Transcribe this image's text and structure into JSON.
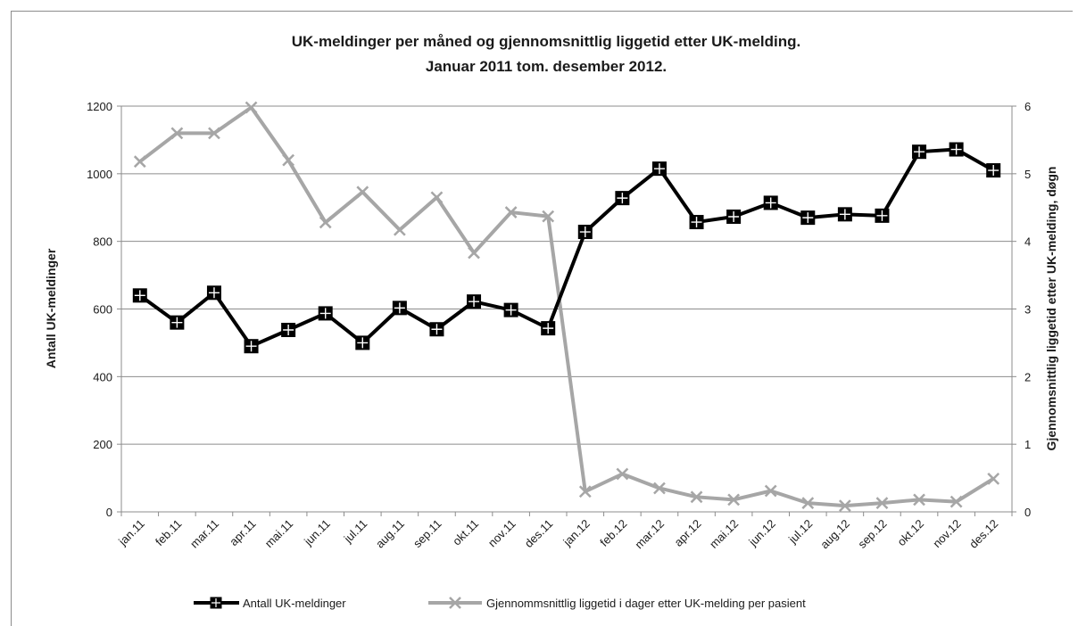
{
  "chart_data": {
    "type": "line",
    "title_line1": "UK-meldinger per måned og gjennomsnittlig liggetid etter UK-melding.",
    "title_line2": "Januar 2011 tom. desember 2012.",
    "ylabel_left": "Antall UK-meldinger",
    "ylabel_right": "Gjennomsnittlig liggetid etter UK-melding, døgn",
    "ylim_left": [
      0,
      1200
    ],
    "ylim_right": [
      0,
      6
    ],
    "yticks_left": [
      "0",
      "200",
      "400",
      "600",
      "800",
      "1000",
      "1200"
    ],
    "yticks_right": [
      "0",
      "1",
      "2",
      "3",
      "4",
      "5",
      "6"
    ],
    "grid": true,
    "legend_position": "bottom",
    "categories": [
      "jan.11",
      "feb.11",
      "mar.11",
      "apr.11",
      "mai.11",
      "jun.11",
      "jul.11",
      "aug.11",
      "sep.11",
      "okt.11",
      "nov.11",
      "des.11",
      "jan.12",
      "feb.12",
      "mar.12",
      "apr.12",
      "mai.12",
      "jun.12",
      "jul.12",
      "aug.12",
      "sep.12",
      "okt.12",
      "nov.12",
      "des.12"
    ],
    "series": [
      {
        "name": "Antall UK-meldinger",
        "axis": "left",
        "color": "#000000",
        "values": [
          640,
          560,
          648,
          490,
          538,
          587,
          500,
          603,
          540,
          622,
          597,
          543,
          828,
          928,
          1015,
          857,
          873,
          914,
          870,
          880,
          876,
          1065,
          1072,
          1010
        ]
      },
      {
        "name": "Gjennommsnittlig liggetid i dager  etter UK-melding per pasient",
        "axis": "right",
        "color": "#a6a6a6",
        "values": [
          5.18,
          5.6,
          5.6,
          5.98,
          5.2,
          4.28,
          4.73,
          4.17,
          4.65,
          3.83,
          4.43,
          4.37,
          0.3,
          0.56,
          0.35,
          0.22,
          0.18,
          0.31,
          0.13,
          0.09,
          0.13,
          0.18,
          0.15,
          0.49
        ]
      }
    ]
  }
}
